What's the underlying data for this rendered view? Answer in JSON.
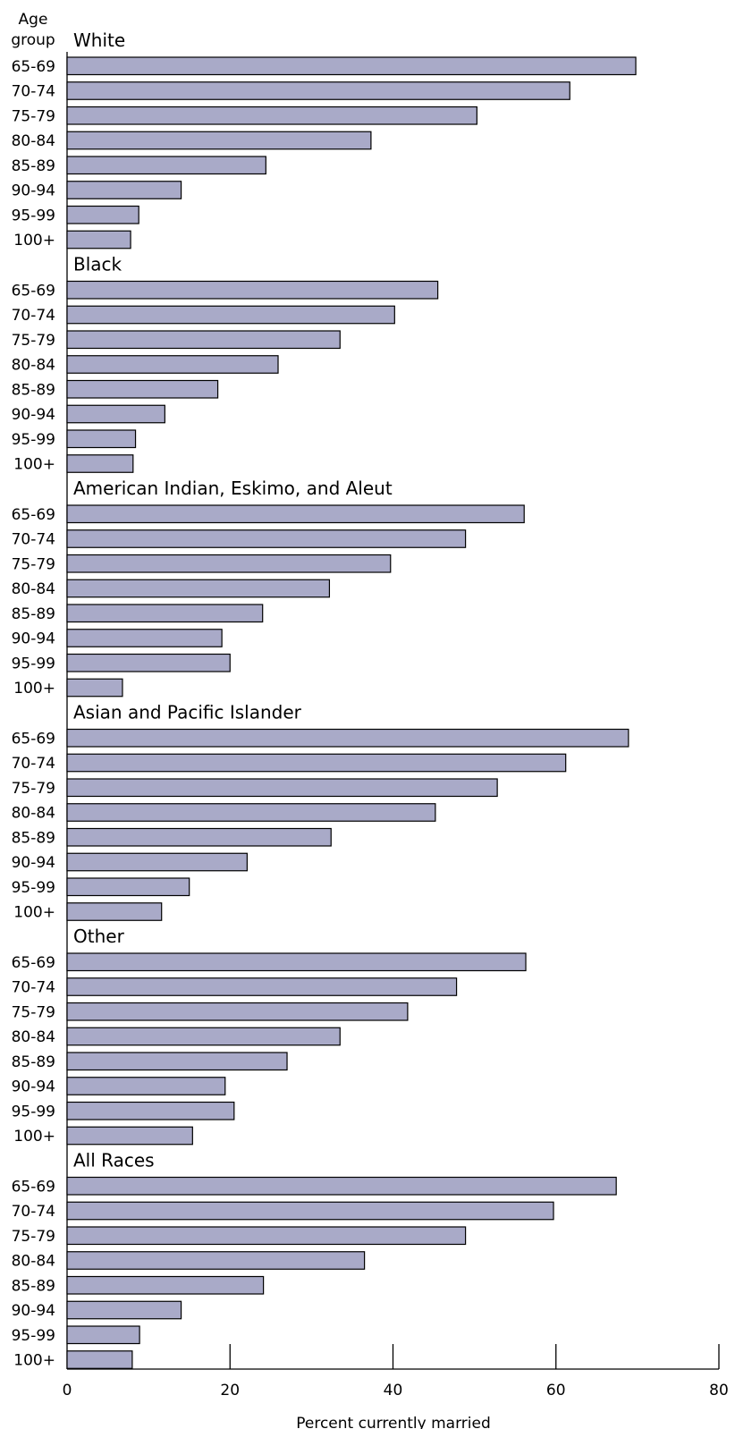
{
  "chart_data": {
    "type": "bar",
    "orientation": "horizontal",
    "y_axis_title_line1": "Age",
    "y_axis_title_line2": "group",
    "xlabel": "Percent currently married",
    "xlim": [
      0,
      80
    ],
    "x_ticks": [
      0,
      20,
      40,
      60,
      80
    ],
    "categories": [
      "65-69",
      "70-74",
      "75-79",
      "80-84",
      "85-89",
      "90-94",
      "95-99",
      "100+"
    ],
    "bar_color": "#a9aac8",
    "groups": [
      {
        "name": "White",
        "values": [
          69.8,
          61.7,
          50.3,
          37.3,
          24.4,
          14.0,
          8.8,
          7.8
        ]
      },
      {
        "name": "Black",
        "values": [
          45.5,
          40.2,
          33.5,
          25.9,
          18.5,
          12.0,
          8.4,
          8.1
        ]
      },
      {
        "name": "American Indian, Eskimo, and Aleut",
        "values": [
          56.1,
          48.9,
          39.7,
          32.2,
          24.0,
          19.0,
          20.0,
          6.8
        ]
      },
      {
        "name": "Asian and Pacific Islander",
        "values": [
          68.9,
          61.2,
          52.8,
          45.2,
          32.4,
          22.1,
          15.0,
          11.6
        ]
      },
      {
        "name": "Other",
        "values": [
          56.3,
          47.8,
          41.8,
          33.5,
          27.0,
          19.4,
          20.5,
          15.4
        ]
      },
      {
        "name": "All Races",
        "values": [
          67.4,
          59.7,
          48.9,
          36.5,
          24.1,
          14.0,
          8.9,
          8.0
        ]
      }
    ]
  }
}
